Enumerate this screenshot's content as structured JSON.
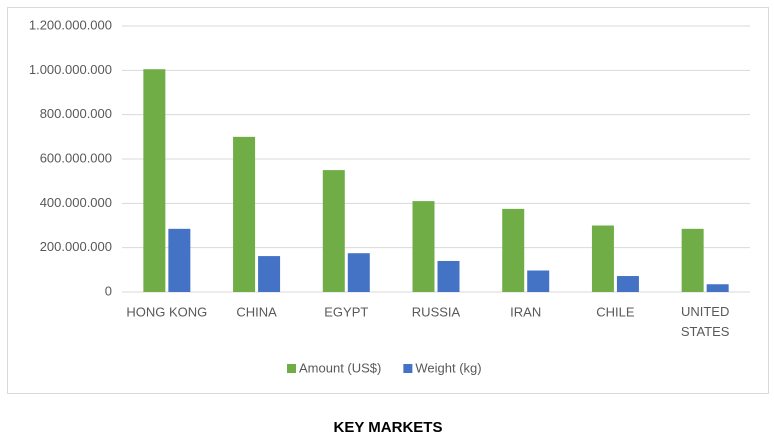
{
  "chart_data": {
    "type": "bar",
    "title": "KEY MARKETS",
    "categories": [
      "HONG KONG",
      "CHINA",
      "EGYPT",
      "RUSSIA",
      "IRAN",
      "CHILE",
      "UNITED STATES"
    ],
    "series": [
      {
        "name": "Amount (US$)",
        "color": "#70ad47",
        "values": [
          1005000000,
          700000000,
          550000000,
          410000000,
          375000000,
          300000000,
          285000000
        ]
      },
      {
        "name": "Weight (kg)",
        "color": "#4472c4",
        "values": [
          285000000,
          162000000,
          175000000,
          140000000,
          97000000,
          72000000,
          35000000
        ]
      }
    ],
    "ylim": [
      0,
      1200000000
    ],
    "yticks": [
      0,
      {
        "value": 200000000,
        "label": "200.000.000"
      },
      {
        "value": 400000000,
        "label": "400.000.000"
      },
      {
        "value": 600000000,
        "label": "600.000.000"
      },
      {
        "value": 800000000,
        "label": "800.000.000"
      },
      {
        "value": 1000000000,
        "label": "1.000.000.000"
      },
      {
        "value": 1200000000,
        "label": "1.200.000.000"
      }
    ],
    "grid": true,
    "legend": "bottom"
  }
}
